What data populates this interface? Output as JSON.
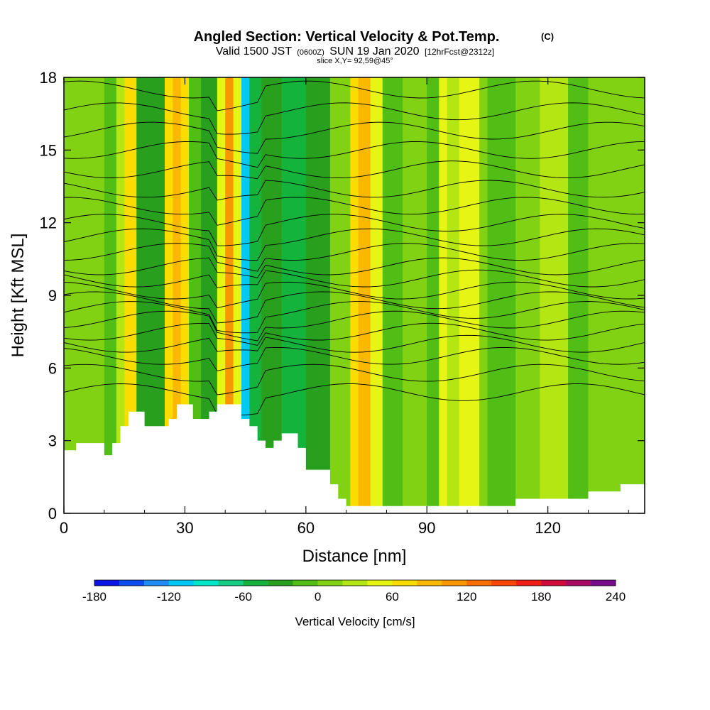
{
  "chart_data": {
    "type": "heatmap",
    "title": "Angled Section: Vertical Velocity & Pot.Temp.",
    "title_units": "(C)",
    "subtitle": {
      "valid": "Valid 1500 JST",
      "utc": "(0600Z)",
      "date": "SUN 19 Jan 2020",
      "forecast": "[12hrFcst@2312z]"
    },
    "slice": "slice X,Y= 92,59@45°",
    "xlabel": "Distance [nm]",
    "ylabel": "Height [Kft MSL]",
    "xlim": [
      0,
      144
    ],
    "ylim": [
      0,
      18
    ],
    "x_ticks": [
      "0",
      "30",
      "60",
      "90",
      "120"
    ],
    "x_tick_values": [
      0,
      30,
      60,
      90,
      120
    ],
    "y_ticks": [
      "0",
      "3",
      "6",
      "9",
      "12",
      "15",
      "18"
    ],
    "y_tick_values": [
      0,
      3,
      6,
      9,
      12,
      15,
      18
    ],
    "colorbar": {
      "label": "Vertical Velocity [cm/s]",
      "min": -180,
      "max": 240,
      "step": 20,
      "tick_labels": [
        "-180",
        "-120",
        "-60",
        "0",
        "60",
        "120",
        "180",
        "240"
      ],
      "tick_values": [
        -180,
        -120,
        -60,
        0,
        60,
        120,
        180,
        240
      ],
      "colors": [
        "#0a14e6",
        "#0a4cf0",
        "#1e8cf5",
        "#00c8f5",
        "#00e6c8",
        "#14cc82",
        "#14b43c",
        "#28a01e",
        "#50be14",
        "#82d214",
        "#b4e614",
        "#e6f514",
        "#fadc00",
        "#fab900",
        "#fa9600",
        "#fa6e00",
        "#fa4600",
        "#f01e14",
        "#d20a3c",
        "#aa0a64",
        "#780a8c"
      ]
    },
    "vertical_velocity_bands": [
      {
        "x": [
          0,
          3
        ],
        "value": 5
      },
      {
        "x": [
          3,
          10
        ],
        "value": 15
      },
      {
        "x": [
          10,
          13
        ],
        "value": -15
      },
      {
        "x": [
          13,
          15
        ],
        "value": 20
      },
      {
        "x": [
          15,
          18
        ],
        "value": 70
      },
      {
        "x": [
          18,
          25
        ],
        "value": -25
      },
      {
        "x": [
          25,
          27
        ],
        "value": 60
      },
      {
        "x": [
          27,
          29
        ],
        "value": 95
      },
      {
        "x": [
          29,
          31
        ],
        "value": 60
      },
      {
        "x": [
          31,
          34
        ],
        "value": -5
      },
      {
        "x": [
          34,
          38
        ],
        "value": -30
      },
      {
        "x": [
          38,
          40
        ],
        "value": 50
      },
      {
        "x": [
          40,
          42
        ],
        "value": 110
      },
      {
        "x": [
          42,
          44
        ],
        "value": 40
      },
      {
        "x": [
          44,
          46
        ],
        "value": -110
      },
      {
        "x": [
          46,
          49
        ],
        "value": -60
      },
      {
        "x": [
          49,
          54
        ],
        "value": -25
      },
      {
        "x": [
          54,
          60
        ],
        "value": -50
      },
      {
        "x": [
          60,
          66
        ],
        "value": -35
      },
      {
        "x": [
          66,
          71
        ],
        "value": 10
      },
      {
        "x": [
          71,
          73
        ],
        "value": 60
      },
      {
        "x": [
          73,
          76
        ],
        "value": 90
      },
      {
        "x": [
          76,
          79
        ],
        "value": 40
      },
      {
        "x": [
          79,
          84
        ],
        "value": -10
      },
      {
        "x": [
          84,
          90
        ],
        "value": 5
      },
      {
        "x": [
          90,
          93
        ],
        "value": -15
      },
      {
        "x": [
          93,
          95
        ],
        "value": 45
      },
      {
        "x": [
          95,
          98
        ],
        "value": 20
      },
      {
        "x": [
          98,
          103
        ],
        "value": 50
      },
      {
        "x": [
          103,
          105
        ],
        "value": 5
      },
      {
        "x": [
          105,
          112
        ],
        "value": -20
      },
      {
        "x": [
          112,
          118
        ],
        "value": 5
      },
      {
        "x": [
          118,
          125
        ],
        "value": 20
      },
      {
        "x": [
          125,
          130
        ],
        "value": -5
      },
      {
        "x": [
          130,
          135
        ],
        "value": 10
      },
      {
        "x": [
          135,
          144
        ],
        "value": 15
      }
    ],
    "terrain": [
      [
        0,
        2.6
      ],
      [
        3,
        2.9
      ],
      [
        8,
        2.9
      ],
      [
        10,
        2.4
      ],
      [
        12,
        2.9
      ],
      [
        14,
        3.6
      ],
      [
        16,
        4.2
      ],
      [
        18,
        4.2
      ],
      [
        20,
        3.6
      ],
      [
        23,
        3.6
      ],
      [
        26,
        3.9
      ],
      [
        28,
        4.5
      ],
      [
        30,
        4.5
      ],
      [
        32,
        3.9
      ],
      [
        34,
        3.9
      ],
      [
        36,
        4.2
      ],
      [
        38,
        4.5
      ],
      [
        42,
        4.5
      ],
      [
        44,
        3.9
      ],
      [
        46,
        3.6
      ],
      [
        48,
        3.0
      ],
      [
        50,
        2.7
      ],
      [
        52,
        3.0
      ],
      [
        54,
        3.3
      ],
      [
        57,
        3.3
      ],
      [
        58,
        2.7
      ],
      [
        60,
        1.8
      ],
      [
        64,
        1.8
      ],
      [
        66,
        1.2
      ],
      [
        68,
        0.6
      ],
      [
        70,
        0.3
      ],
      [
        85,
        0.3
      ],
      [
        110,
        0.3
      ],
      [
        112,
        0.6
      ],
      [
        128,
        0.6
      ],
      [
        130,
        0.9
      ],
      [
        136,
        0.9
      ],
      [
        138,
        1.2
      ],
      [
        144,
        1.2
      ]
    ],
    "isentrope_baselines": [
      5.0,
      5.8,
      6.5,
      7.0,
      7.5,
      8.0,
      8.4,
      8.8,
      9.2,
      9.7,
      10.2,
      10.8,
      11.4,
      12.0,
      12.7,
      13.4,
      14.2,
      15.0,
      15.8,
      16.6,
      17.5
    ]
  }
}
